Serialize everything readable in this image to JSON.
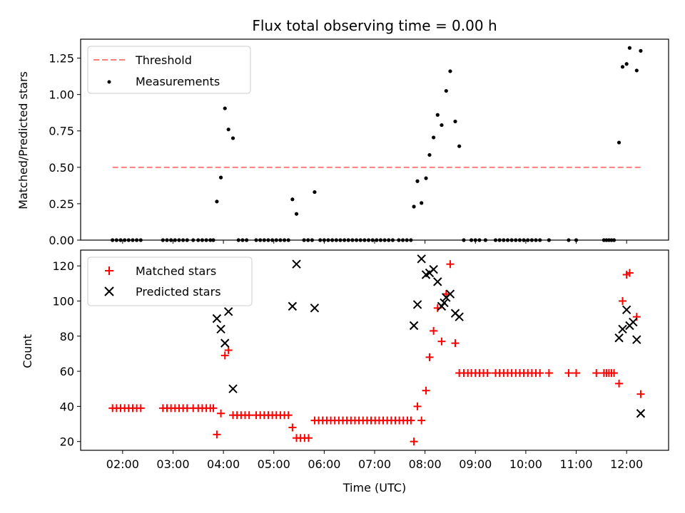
{
  "chart_data": [
    {
      "type": "scatter",
      "title": "Flux total observing time = 0.00 h",
      "ylabel": "Matched/Predicted stars",
      "xlabel": "",
      "xlim": [
        1.167,
        12.833
      ],
      "ylim": [
        0,
        1.38
      ],
      "yticks": [
        0,
        0.25,
        0.5,
        0.75,
        1.0,
        1.25
      ],
      "ytick_labels": [
        "0.00",
        "0.25",
        "0.50",
        "0.75",
        "1.00",
        "1.25"
      ],
      "xticks": [
        2,
        3,
        4,
        5,
        6,
        7,
        8,
        9,
        10,
        11,
        12
      ],
      "legend": {
        "position": "top-left",
        "threshold_label": "Threshold",
        "measurements_label": "Measurements"
      },
      "threshold": {
        "name": "Threshold",
        "y": 0.5,
        "x_start": 1.8,
        "x_end": 12.3,
        "color": "#ff7f7f"
      },
      "series": [
        {
          "name": "Measurements",
          "color": "#000000",
          "points": [
            [
              1.8,
              0
            ],
            [
              1.88,
              0
            ],
            [
              1.96,
              0
            ],
            [
              2.04,
              0
            ],
            [
              2.12,
              0
            ],
            [
              2.2,
              0
            ],
            [
              2.28,
              0
            ],
            [
              2.36,
              0
            ],
            [
              2.8,
              0
            ],
            [
              2.88,
              0
            ],
            [
              2.96,
              0
            ],
            [
              3.04,
              0
            ],
            [
              3.12,
              0
            ],
            [
              3.2,
              0
            ],
            [
              3.28,
              0
            ],
            [
              3.4,
              0
            ],
            [
              3.5,
              0
            ],
            [
              3.58,
              0
            ],
            [
              3.66,
              0
            ],
            [
              3.74,
              0
            ],
            [
              3.8,
              0
            ],
            [
              3.87,
              0.265
            ],
            [
              3.95,
              0.43
            ],
            [
              4.03,
              0.905
            ],
            [
              4.1,
              0.76
            ],
            [
              4.19,
              0.7
            ],
            [
              4.3,
              0
            ],
            [
              4.38,
              0
            ],
            [
              4.46,
              0
            ],
            [
              4.65,
              0
            ],
            [
              4.73,
              0
            ],
            [
              4.81,
              0
            ],
            [
              4.89,
              0
            ],
            [
              4.97,
              0
            ],
            [
              5.05,
              0
            ],
            [
              5.13,
              0
            ],
            [
              5.21,
              0
            ],
            [
              5.29,
              0
            ],
            [
              5.37,
              0.28
            ],
            [
              5.45,
              0.18
            ],
            [
              5.6,
              0
            ],
            [
              5.68,
              0
            ],
            [
              5.76,
              0
            ],
            [
              5.81,
              0.33
            ],
            [
              5.92,
              0
            ],
            [
              6.0,
              0
            ],
            [
              6.08,
              0
            ],
            [
              6.16,
              0
            ],
            [
              6.24,
              0
            ],
            [
              6.32,
              0
            ],
            [
              6.4,
              0
            ],
            [
              6.48,
              0
            ],
            [
              6.56,
              0
            ],
            [
              6.64,
              0
            ],
            [
              6.72,
              0
            ],
            [
              6.8,
              0
            ],
            [
              6.88,
              0
            ],
            [
              6.96,
              0
            ],
            [
              7.04,
              0
            ],
            [
              7.12,
              0
            ],
            [
              7.2,
              0
            ],
            [
              7.28,
              0
            ],
            [
              7.36,
              0
            ],
            [
              7.48,
              0
            ],
            [
              7.56,
              0
            ],
            [
              7.64,
              0
            ],
            [
              7.72,
              0
            ],
            [
              7.78,
              0.23
            ],
            [
              7.85,
              0.405
            ],
            [
              7.93,
              0.255
            ],
            [
              8.02,
              0.425
            ],
            [
              8.09,
              0.585
            ],
            [
              8.17,
              0.705
            ],
            [
              8.25,
              0.86
            ],
            [
              8.33,
              0.79
            ],
            [
              8.42,
              1.025
            ],
            [
              8.5,
              1.16
            ],
            [
              8.6,
              0.815
            ],
            [
              8.68,
              0.645
            ],
            [
              8.77,
              0
            ],
            [
              8.92,
              0
            ],
            [
              9.0,
              0
            ],
            [
              9.08,
              0
            ],
            [
              9.2,
              0
            ],
            [
              9.4,
              0
            ],
            [
              9.48,
              0
            ],
            [
              9.56,
              0
            ],
            [
              9.64,
              0
            ],
            [
              9.72,
              0
            ],
            [
              9.8,
              0
            ],
            [
              9.88,
              0
            ],
            [
              9.96,
              0
            ],
            [
              10.04,
              0
            ],
            [
              10.12,
              0
            ],
            [
              10.2,
              0
            ],
            [
              10.28,
              0
            ],
            [
              10.46,
              0
            ],
            [
              10.85,
              0
            ],
            [
              11.0,
              0
            ],
            [
              11.55,
              0
            ],
            [
              11.6,
              0
            ],
            [
              11.65,
              0
            ],
            [
              11.7,
              0
            ],
            [
              11.75,
              0
            ],
            [
              11.85,
              0.67
            ],
            [
              11.92,
              1.19
            ],
            [
              12.0,
              1.21
            ],
            [
              12.06,
              1.32
            ],
            [
              12.2,
              1.165
            ],
            [
              12.28,
              1.3
            ]
          ]
        }
      ]
    },
    {
      "type": "scatter",
      "title": "",
      "ylabel": "Count",
      "xlabel": "Time (UTC)",
      "xlim": [
        1.167,
        12.833
      ],
      "ylim": [
        15,
        129
      ],
      "yticks": [
        20,
        40,
        60,
        80,
        100,
        120
      ],
      "ytick_labels": [
        "20",
        "40",
        "60",
        "80",
        "100",
        "120"
      ],
      "xticks": [
        2,
        3,
        4,
        5,
        6,
        7,
        8,
        9,
        10,
        11,
        12
      ],
      "xtick_labels": [
        "02:00",
        "03:00",
        "04:00",
        "05:00",
        "06:00",
        "07:00",
        "08:00",
        "09:00",
        "10:00",
        "11:00",
        "12:00"
      ],
      "legend": {
        "position": "top-left",
        "matched_label": "Matched stars",
        "predicted_label": "Predicted stars"
      },
      "series": [
        {
          "name": "Matched stars",
          "marker": "plus",
          "color": "#ff0000",
          "points": [
            [
              1.8,
              39
            ],
            [
              1.88,
              39
            ],
            [
              1.96,
              39
            ],
            [
              2.04,
              39
            ],
            [
              2.12,
              39
            ],
            [
              2.2,
              39
            ],
            [
              2.28,
              39
            ],
            [
              2.36,
              39
            ],
            [
              2.8,
              39
            ],
            [
              2.88,
              39
            ],
            [
              2.96,
              39
            ],
            [
              3.04,
              39
            ],
            [
              3.12,
              39
            ],
            [
              3.2,
              39
            ],
            [
              3.28,
              39
            ],
            [
              3.4,
              39
            ],
            [
              3.5,
              39
            ],
            [
              3.58,
              39
            ],
            [
              3.66,
              39
            ],
            [
              3.74,
              39
            ],
            [
              3.8,
              39
            ],
            [
              3.87,
              24
            ],
            [
              3.95,
              36
            ],
            [
              4.03,
              69
            ],
            [
              4.1,
              72
            ],
            [
              4.19,
              35
            ],
            [
              4.27,
              35
            ],
            [
              4.35,
              35
            ],
            [
              4.43,
              35
            ],
            [
              4.51,
              35
            ],
            [
              4.65,
              35
            ],
            [
              4.73,
              35
            ],
            [
              4.81,
              35
            ],
            [
              4.89,
              35
            ],
            [
              4.97,
              35
            ],
            [
              5.05,
              35
            ],
            [
              5.13,
              35
            ],
            [
              5.21,
              35
            ],
            [
              5.29,
              35
            ],
            [
              5.37,
              28
            ],
            [
              5.45,
              22
            ],
            [
              5.53,
              22
            ],
            [
              5.61,
              22
            ],
            [
              5.69,
              22
            ],
            [
              5.81,
              32
            ],
            [
              5.89,
              32
            ],
            [
              5.97,
              32
            ],
            [
              6.05,
              32
            ],
            [
              6.13,
              32
            ],
            [
              6.21,
              32
            ],
            [
              6.29,
              32
            ],
            [
              6.37,
              32
            ],
            [
              6.45,
              32
            ],
            [
              6.53,
              32
            ],
            [
              6.61,
              32
            ],
            [
              6.69,
              32
            ],
            [
              6.77,
              32
            ],
            [
              6.85,
              32
            ],
            [
              6.93,
              32
            ],
            [
              7.01,
              32
            ],
            [
              7.09,
              32
            ],
            [
              7.17,
              32
            ],
            [
              7.25,
              32
            ],
            [
              7.33,
              32
            ],
            [
              7.41,
              32
            ],
            [
              7.49,
              32
            ],
            [
              7.57,
              32
            ],
            [
              7.65,
              32
            ],
            [
              7.72,
              32
            ],
            [
              7.78,
              20
            ],
            [
              7.85,
              40
            ],
            [
              7.93,
              32
            ],
            [
              8.02,
              49
            ],
            [
              8.09,
              68
            ],
            [
              8.17,
              83
            ],
            [
              8.25,
              96
            ],
            [
              8.33,
              77
            ],
            [
              8.42,
              104
            ],
            [
              8.5,
              121
            ],
            [
              8.6,
              76
            ],
            [
              8.68,
              59
            ],
            [
              8.77,
              59
            ],
            [
              8.85,
              59
            ],
            [
              8.92,
              59
            ],
            [
              9.0,
              59
            ],
            [
              9.08,
              59
            ],
            [
              9.16,
              59
            ],
            [
              9.24,
              59
            ],
            [
              9.4,
              59
            ],
            [
              9.48,
              59
            ],
            [
              9.56,
              59
            ],
            [
              9.64,
              59
            ],
            [
              9.72,
              59
            ],
            [
              9.8,
              59
            ],
            [
              9.88,
              59
            ],
            [
              9.96,
              59
            ],
            [
              10.04,
              59
            ],
            [
              10.12,
              59
            ],
            [
              10.2,
              59
            ],
            [
              10.28,
              59
            ],
            [
              10.46,
              59
            ],
            [
              10.85,
              59
            ],
            [
              11.0,
              59
            ],
            [
              11.4,
              59
            ],
            [
              11.55,
              59
            ],
            [
              11.6,
              59
            ],
            [
              11.65,
              59
            ],
            [
              11.7,
              59
            ],
            [
              11.75,
              59
            ],
            [
              11.85,
              53
            ],
            [
              11.92,
              100
            ],
            [
              12.0,
              115
            ],
            [
              12.06,
              116
            ],
            [
              12.2,
              91
            ],
            [
              12.28,
              47
            ]
          ]
        },
        {
          "name": "Predicted stars",
          "marker": "x",
          "color": "#000000",
          "points": [
            [
              3.87,
              90
            ],
            [
              3.95,
              84
            ],
            [
              4.03,
              76
            ],
            [
              4.1,
              94
            ],
            [
              4.19,
              50
            ],
            [
              5.37,
              97
            ],
            [
              5.45,
              121
            ],
            [
              5.81,
              96
            ],
            [
              7.78,
              86
            ],
            [
              7.85,
              98
            ],
            [
              7.93,
              124
            ],
            [
              8.02,
              115
            ],
            [
              8.09,
              116
            ],
            [
              8.17,
              118
            ],
            [
              8.25,
              111
            ],
            [
              8.33,
              97
            ],
            [
              8.38,
              99
            ],
            [
              8.42,
              102
            ],
            [
              8.5,
              104
            ],
            [
              8.6,
              93
            ],
            [
              8.68,
              91
            ],
            [
              11.85,
              79
            ],
            [
              11.92,
              84
            ],
            [
              12.0,
              95
            ],
            [
              12.06,
              86
            ],
            [
              12.13,
              88
            ],
            [
              12.2,
              78
            ],
            [
              12.28,
              36
            ]
          ]
        }
      ]
    }
  ]
}
